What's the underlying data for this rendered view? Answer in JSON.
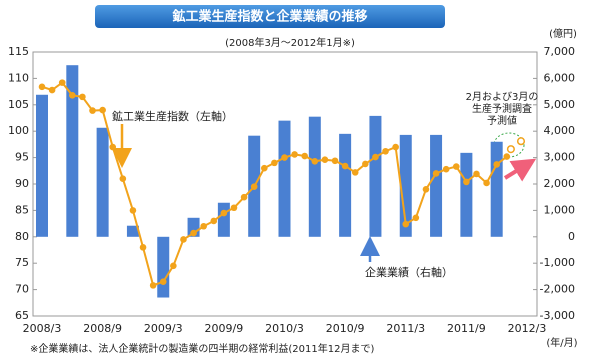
{
  "chart_data": {
    "type": "combo",
    "title": "鉱工業生産指数と企業業績の推移",
    "subtitle": "(2008年3月～2012年1月※)",
    "y2_unit": "(億円)",
    "x_unit": "(年/月)",
    "footnote": "※企業業績は、法人企業統計の製造業の四半期の経常利益(2011年12月まで)",
    "forecast_note": [
      "2月および3月の",
      "生産予測調査",
      "予測値"
    ],
    "categories": [
      "2008/3",
      null,
      null,
      null,
      null,
      null,
      "2008/9",
      null,
      null,
      null,
      null,
      null,
      "2009/3",
      null,
      null,
      null,
      null,
      null,
      "2009/9",
      null,
      null,
      null,
      null,
      null,
      "2010/3",
      null,
      null,
      null,
      null,
      null,
      "2010/9",
      null,
      null,
      null,
      null,
      null,
      "2011/3",
      null,
      null,
      null,
      null,
      null,
      "2011/9",
      null,
      null,
      null,
      null,
      null,
      "2012/3"
    ],
    "ylim": [
      65,
      115
    ],
    "yticks": [
      65,
      70,
      75,
      80,
      85,
      90,
      95,
      100,
      105,
      110,
      115
    ],
    "y2lim": [
      -3000,
      7000
    ],
    "y2ticks": [
      {
        "value": -3000,
        "label": "-3,000"
      },
      {
        "value": -2000,
        "label": "-2,000"
      },
      {
        "value": -1000,
        "label": "-1,000"
      },
      0,
      {
        "value": 1000,
        "label": "1,000"
      },
      {
        "value": 2000,
        "label": "2,000"
      },
      {
        "value": 3000,
        "label": "3,000"
      },
      {
        "value": 4000,
        "label": "4,000"
      },
      {
        "value": 5000,
        "label": "5,000"
      },
      {
        "value": 6000,
        "label": "6,000"
      },
      {
        "value": 7000,
        "label": "7,000"
      }
    ],
    "grid": false,
    "series": [
      {
        "name": "企業業績（右軸）",
        "type": "bar",
        "axis": "y2",
        "color": "#4a80d2",
        "values": [
          5380,
          null,
          null,
          6500,
          null,
          null,
          4130,
          null,
          null,
          420,
          null,
          null,
          -2300,
          null,
          null,
          720,
          null,
          null,
          1290,
          null,
          null,
          3830,
          null,
          null,
          4400,
          null,
          null,
          4550,
          null,
          null,
          3900,
          null,
          null,
          4580,
          null,
          null,
          3860,
          null,
          null,
          3860,
          null,
          null,
          3180,
          null,
          null,
          3600,
          null,
          null,
          null
        ]
      },
      {
        "name": "鉱工業生産指数（左軸）",
        "type": "line",
        "color": "#f2a31b",
        "values": [
          108.4,
          107.8,
          109.2,
          106.8,
          106.5,
          103.9,
          104.0,
          97,
          91,
          85,
          78,
          70.8,
          71.5,
          74.5,
          79.5,
          80.7,
          82,
          83,
          84.5,
          85.5,
          87.5,
          89.5,
          93,
          94,
          95,
          95.6,
          95.3,
          94.3,
          94.6,
          94.4,
          93.4,
          92.2,
          93.8,
          95.1,
          96.2,
          97,
          82.4,
          83.6,
          89,
          92,
          92.8,
          93.3,
          90.4,
          91.9,
          90.2,
          93.7,
          95.2,
          null,
          null
        ]
      },
      {
        "type": "scatter",
        "color": "#f2a31b",
        "values": [
          null,
          null,
          null,
          null,
          null,
          null,
          null,
          null,
          null,
          null,
          null,
          null,
          null,
          null,
          null,
          null,
          null,
          null,
          null,
          null,
          null,
          null,
          null,
          null,
          null,
          null,
          null,
          null,
          null,
          null,
          null,
          null,
          null,
          null,
          null,
          null,
          null,
          null,
          null,
          null,
          null,
          null,
          null,
          null,
          null,
          null,
          null,
          96.6,
          98.1
        ]
      }
    ]
  }
}
